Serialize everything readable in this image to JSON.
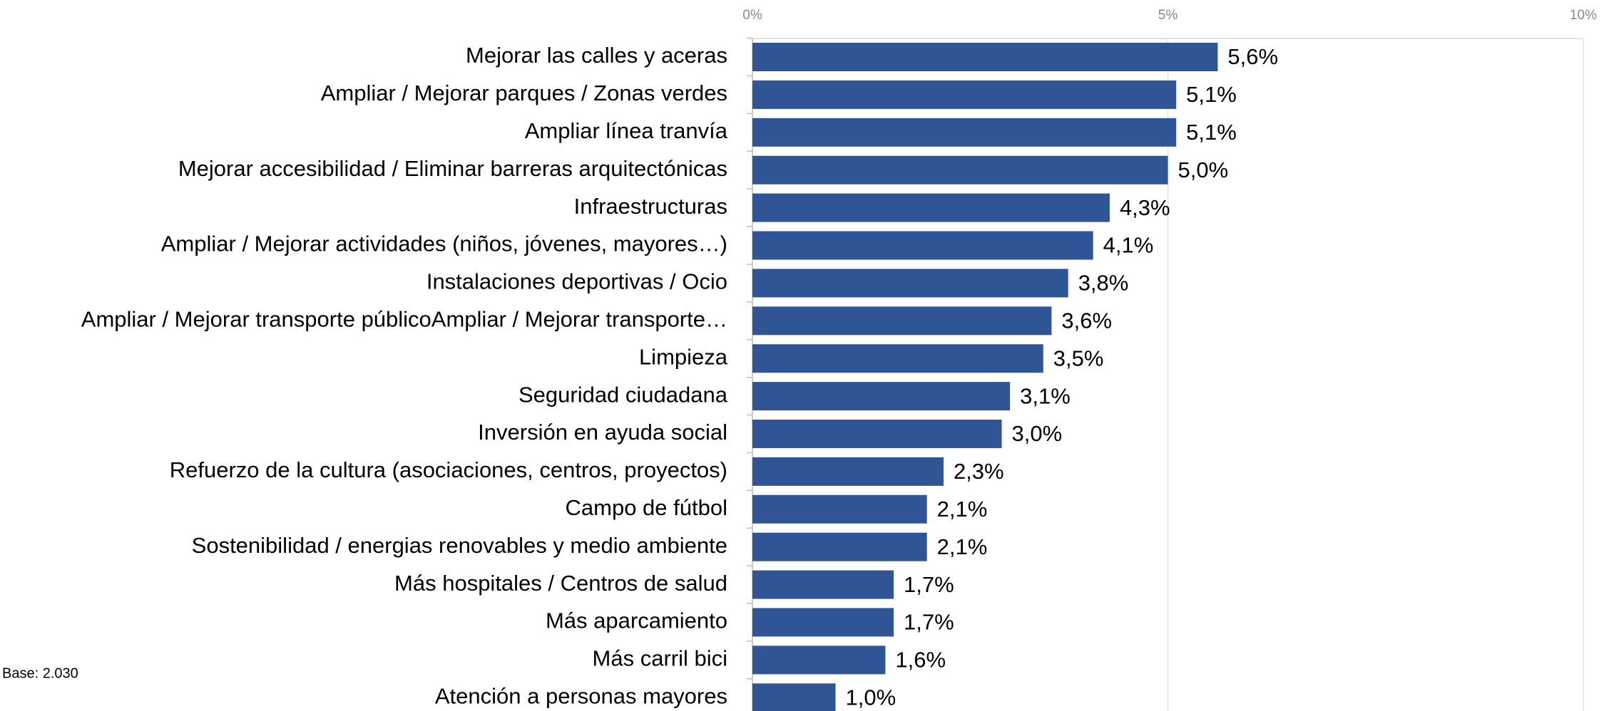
{
  "chart_data": {
    "type": "barh",
    "annotation": "Base: 2.030",
    "categories": [
      "Mejorar las calles y aceras",
      "Ampliar / Mejorar parques / Zonas verdes",
      "Ampliar línea tranvía",
      "Mejorar accesibilidad / Eliminar barreras arquitectónicas",
      "Infraestructuras",
      "Ampliar / Mejorar actividades (niños, jóvenes, mayores…)",
      "Instalaciones deportivas / Ocio",
      "Ampliar / Mejorar transporte públicoAmpliar / Mejorar transporte…",
      "Limpieza",
      "Seguridad ciudadana",
      "Inversión en ayuda social",
      "Refuerzo de la cultura (asociaciones, centros, proyectos)",
      "Campo de fútbol",
      "Sostenibilidad / energias renovables y medio ambiente",
      "Más hospitales / Centros de salud",
      "Más aparcamiento",
      "Más carril bici",
      "Atención a personas mayores"
    ],
    "values": [
      5.6,
      5.1,
      5.1,
      5.0,
      4.3,
      4.1,
      3.8,
      3.6,
      3.5,
      3.1,
      3.0,
      2.3,
      2.1,
      2.1,
      1.7,
      1.7,
      1.6,
      1.0
    ],
    "value_labels": [
      "5,6%",
      "5,1%",
      "5,1%",
      "5,0%",
      "4,3%",
      "4,1%",
      "3,8%",
      "3,6%",
      "3,5%",
      "3,1%",
      "3,0%",
      "2,3%",
      "2,1%",
      "2,1%",
      "1,7%",
      "1,7%",
      "1,6%",
      "1,0%"
    ],
    "color": "#2f5597",
    "xlim": [
      0,
      10
    ],
    "xticks": [
      {
        "value": 0,
        "label": "0%"
      },
      {
        "value": 5,
        "label": "5%"
      },
      {
        "value": 10,
        "label": "10%"
      }
    ],
    "grid": true
  }
}
